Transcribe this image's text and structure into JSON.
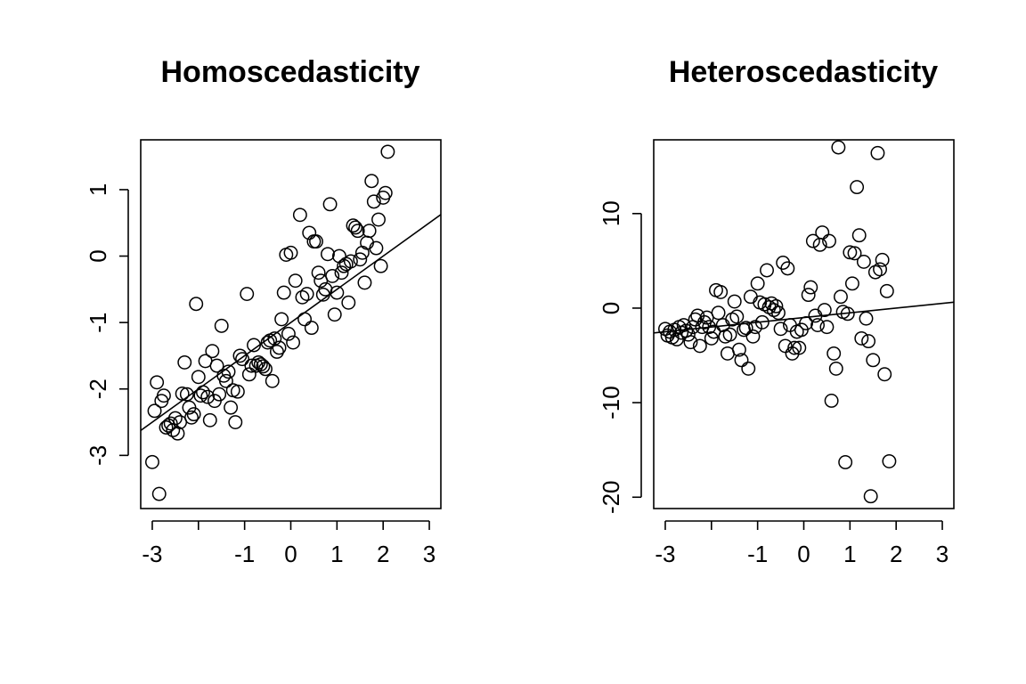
{
  "chart_data": [
    {
      "type": "scatter",
      "title": "Homoscedasticity",
      "xlabel": "",
      "ylabel": "",
      "xlim": [
        -3.25,
        3.25
      ],
      "ylim": [
        -3.8,
        1.75
      ],
      "x_ticks": [
        -3,
        -1,
        0,
        1,
        2,
        3
      ],
      "x_tick_labels": [
        "-3",
        "-1",
        "0",
        "1",
        "2",
        "3"
      ],
      "x_tick_marks": [
        -3,
        -2,
        -1,
        0,
        1,
        2,
        3
      ],
      "y_ticks": [
        -3,
        -2,
        -1,
        0,
        1
      ],
      "y_tick_labels": [
        "-3",
        "-2",
        "-1",
        "0",
        "1"
      ],
      "grid": false,
      "fit_line": {
        "intercept": -1.0,
        "slope": 0.5
      },
      "points": [
        [
          -3.0,
          -3.1
        ],
        [
          -2.95,
          -2.33
        ],
        [
          -2.9,
          -1.9
        ],
        [
          -2.85,
          -3.58
        ],
        [
          -2.8,
          -2.18
        ],
        [
          -2.75,
          -2.1
        ],
        [
          -2.7,
          -2.58
        ],
        [
          -2.65,
          -2.55
        ],
        [
          -2.6,
          -2.52
        ],
        [
          -2.55,
          -2.62
        ],
        [
          -2.5,
          -2.44
        ],
        [
          -2.45,
          -2.67
        ],
        [
          -2.4,
          -2.5
        ],
        [
          -2.35,
          -2.07
        ],
        [
          -2.3,
          -1.6
        ],
        [
          -2.25,
          -2.08
        ],
        [
          -2.2,
          -2.28
        ],
        [
          -2.15,
          -2.43
        ],
        [
          -2.1,
          -2.38
        ],
        [
          -2.05,
          -0.72
        ],
        [
          -2.0,
          -1.82
        ],
        [
          -1.95,
          -2.1
        ],
        [
          -1.9,
          -2.05
        ],
        [
          -1.85,
          -1.58
        ],
        [
          -1.8,
          -2.12
        ],
        [
          -1.75,
          -2.47
        ],
        [
          -1.7,
          -1.43
        ],
        [
          -1.65,
          -2.18
        ],
        [
          -1.6,
          -1.65
        ],
        [
          -1.55,
          -2.08
        ],
        [
          -1.5,
          -1.05
        ],
        [
          -1.45,
          -1.8
        ],
        [
          -1.4,
          -1.88
        ],
        [
          -1.35,
          -1.74
        ],
        [
          -1.3,
          -2.28
        ],
        [
          -1.25,
          -2.02
        ],
        [
          -1.2,
          -2.5
        ],
        [
          -1.15,
          -2.04
        ],
        [
          -1.1,
          -1.5
        ],
        [
          -1.05,
          -1.55
        ],
        [
          -0.95,
          -0.57
        ],
        [
          -0.9,
          -1.78
        ],
        [
          -0.85,
          -1.65
        ],
        [
          -0.8,
          -1.34
        ],
        [
          -0.75,
          -1.65
        ],
        [
          -0.7,
          -1.6
        ],
        [
          -0.65,
          -1.63
        ],
        [
          -0.6,
          -1.66
        ],
        [
          -0.55,
          -1.7
        ],
        [
          -0.5,
          -1.3
        ],
        [
          -0.45,
          -1.27
        ],
        [
          -0.4,
          -1.88
        ],
        [
          -0.35,
          -1.24
        ],
        [
          -0.3,
          -1.44
        ],
        [
          -0.25,
          -1.38
        ],
        [
          -0.2,
          -0.95
        ],
        [
          -0.15,
          -0.55
        ],
        [
          -0.1,
          0.02
        ],
        [
          -0.05,
          -1.17
        ],
        [
          0.0,
          0.05
        ],
        [
          0.05,
          -1.3
        ],
        [
          0.1,
          -0.37
        ],
        [
          0.2,
          0.62
        ],
        [
          0.25,
          -0.62
        ],
        [
          0.3,
          -0.95
        ],
        [
          0.35,
          -0.57
        ],
        [
          0.4,
          0.35
        ],
        [
          0.45,
          -1.08
        ],
        [
          0.5,
          0.22
        ],
        [
          0.55,
          0.22
        ],
        [
          0.6,
          -0.25
        ],
        [
          0.65,
          -0.37
        ],
        [
          0.7,
          -0.58
        ],
        [
          0.75,
          -0.5
        ],
        [
          0.8,
          0.03
        ],
        [
          0.85,
          0.78
        ],
        [
          0.9,
          -0.3
        ],
        [
          0.95,
          -0.88
        ],
        [
          1.0,
          -0.55
        ],
        [
          1.05,
          0.0
        ],
        [
          1.1,
          -0.25
        ],
        [
          1.15,
          -0.15
        ],
        [
          1.2,
          -0.12
        ],
        [
          1.25,
          -0.7
        ],
        [
          1.3,
          -0.08
        ],
        [
          1.35,
          0.46
        ],
        [
          1.4,
          0.43
        ],
        [
          1.45,
          0.38
        ],
        [
          1.5,
          -0.05
        ],
        [
          1.55,
          0.05
        ],
        [
          1.6,
          -0.4
        ],
        [
          1.65,
          0.2
        ],
        [
          1.7,
          0.38
        ],
        [
          1.75,
          1.13
        ],
        [
          1.8,
          0.82
        ],
        [
          1.85,
          0.12
        ],
        [
          1.9,
          0.55
        ],
        [
          1.95,
          -0.15
        ],
        [
          2.0,
          0.88
        ],
        [
          2.05,
          0.95
        ],
        [
          2.1,
          1.57
        ]
      ]
    },
    {
      "type": "scatter",
      "title": "Heteroscedasticity",
      "xlabel": "",
      "ylabel": "",
      "xlim": [
        -3.25,
        3.25
      ],
      "ylim": [
        -21.2,
        17.8
      ],
      "x_ticks": [
        -3,
        -1,
        0,
        1,
        2,
        3
      ],
      "x_tick_labels": [
        "-3",
        "-1",
        "0",
        "1",
        "2",
        "3"
      ],
      "x_tick_marks": [
        -3,
        -2,
        -1,
        0,
        1,
        2,
        3
      ],
      "y_ticks": [
        -20,
        -10,
        0,
        10
      ],
      "y_tick_labels": [
        "-20",
        "-10",
        "0",
        "10"
      ],
      "grid": false,
      "fit_line": {
        "intercept": -1.0,
        "slope": 0.5
      },
      "points": [
        [
          -3.0,
          -2.2
        ],
        [
          -2.95,
          -2.9
        ],
        [
          -2.9,
          -2.5
        ],
        [
          -2.85,
          -3.1
        ],
        [
          -2.8,
          -2.3
        ],
        [
          -2.75,
          -3.3
        ],
        [
          -2.7,
          -2.0
        ],
        [
          -2.65,
          -2.6
        ],
        [
          -2.6,
          -1.8
        ],
        [
          -2.55,
          -2.4
        ],
        [
          -2.5,
          -2.8
        ],
        [
          -2.45,
          -3.6
        ],
        [
          -2.4,
          -2.0
        ],
        [
          -2.35,
          -1.2
        ],
        [
          -2.3,
          -0.8
        ],
        [
          -2.25,
          -4.0
        ],
        [
          -2.2,
          -2.0
        ],
        [
          -2.15,
          -1.5
        ],
        [
          -2.1,
          -1.0
        ],
        [
          -2.05,
          -2.0
        ],
        [
          -2.0,
          -3.2
        ],
        [
          -1.95,
          -2.5
        ],
        [
          -1.9,
          1.9
        ],
        [
          -1.85,
          -0.5
        ],
        [
          -1.8,
          1.7
        ],
        [
          -1.75,
          -1.8
        ],
        [
          -1.7,
          -3.0
        ],
        [
          -1.65,
          -4.8
        ],
        [
          -1.6,
          -2.8
        ],
        [
          -1.55,
          -1.2
        ],
        [
          -1.5,
          0.7
        ],
        [
          -1.45,
          -0.9
        ],
        [
          -1.4,
          -4.4
        ],
        [
          -1.35,
          -5.5
        ],
        [
          -1.3,
          -2.3
        ],
        [
          -1.25,
          -2.1
        ],
        [
          -1.2,
          -6.4
        ],
        [
          -1.15,
          1.2
        ],
        [
          -1.1,
          -3.0
        ],
        [
          -1.05,
          -2.0
        ],
        [
          -1.0,
          2.6
        ],
        [
          -0.95,
          0.6
        ],
        [
          -0.9,
          -1.5
        ],
        [
          -0.85,
          0.4
        ],
        [
          -0.8,
          4.0
        ],
        [
          -0.75,
          0.1
        ],
        [
          -0.7,
          0.5
        ],
        [
          -0.65,
          -0.2
        ],
        [
          -0.6,
          0.2
        ],
        [
          -0.55,
          -0.5
        ],
        [
          -0.5,
          -2.2
        ],
        [
          -0.45,
          4.8
        ],
        [
          -0.4,
          -4.0
        ],
        [
          -0.35,
          4.2
        ],
        [
          -0.3,
          -1.8
        ],
        [
          -0.25,
          -4.8
        ],
        [
          -0.2,
          -4.2
        ],
        [
          -0.15,
          -2.5
        ],
        [
          -0.1,
          -4.2
        ],
        [
          -0.05,
          -2.3
        ],
        [
          0.05,
          -1.6
        ],
        [
          0.1,
          1.4
        ],
        [
          0.15,
          2.2
        ],
        [
          0.2,
          7.1
        ],
        [
          0.25,
          -0.8
        ],
        [
          0.3,
          -1.8
        ],
        [
          0.35,
          6.7
        ],
        [
          0.4,
          8.0
        ],
        [
          0.45,
          -0.2
        ],
        [
          0.5,
          -2.0
        ],
        [
          0.55,
          7.1
        ],
        [
          0.6,
          -9.8
        ],
        [
          0.65,
          -4.8
        ],
        [
          0.7,
          -6.4
        ],
        [
          0.75,
          17.0
        ],
        [
          0.8,
          1.2
        ],
        [
          0.85,
          -0.4
        ],
        [
          0.9,
          -16.3
        ],
        [
          0.95,
          -0.6
        ],
        [
          1.0,
          5.9
        ],
        [
          1.05,
          2.6
        ],
        [
          1.1,
          5.8
        ],
        [
          1.15,
          12.8
        ],
        [
          1.2,
          7.7
        ],
        [
          1.25,
          -3.2
        ],
        [
          1.3,
          4.9
        ],
        [
          1.35,
          -1.1
        ],
        [
          1.4,
          -3.5
        ],
        [
          1.45,
          -19.9
        ],
        [
          1.5,
          -5.5
        ],
        [
          1.55,
          3.8
        ],
        [
          1.6,
          16.4
        ],
        [
          1.65,
          4.1
        ],
        [
          1.7,
          5.1
        ],
        [
          1.75,
          -7.0
        ],
        [
          1.8,
          1.8
        ],
        [
          1.85,
          -16.2
        ]
      ]
    }
  ]
}
